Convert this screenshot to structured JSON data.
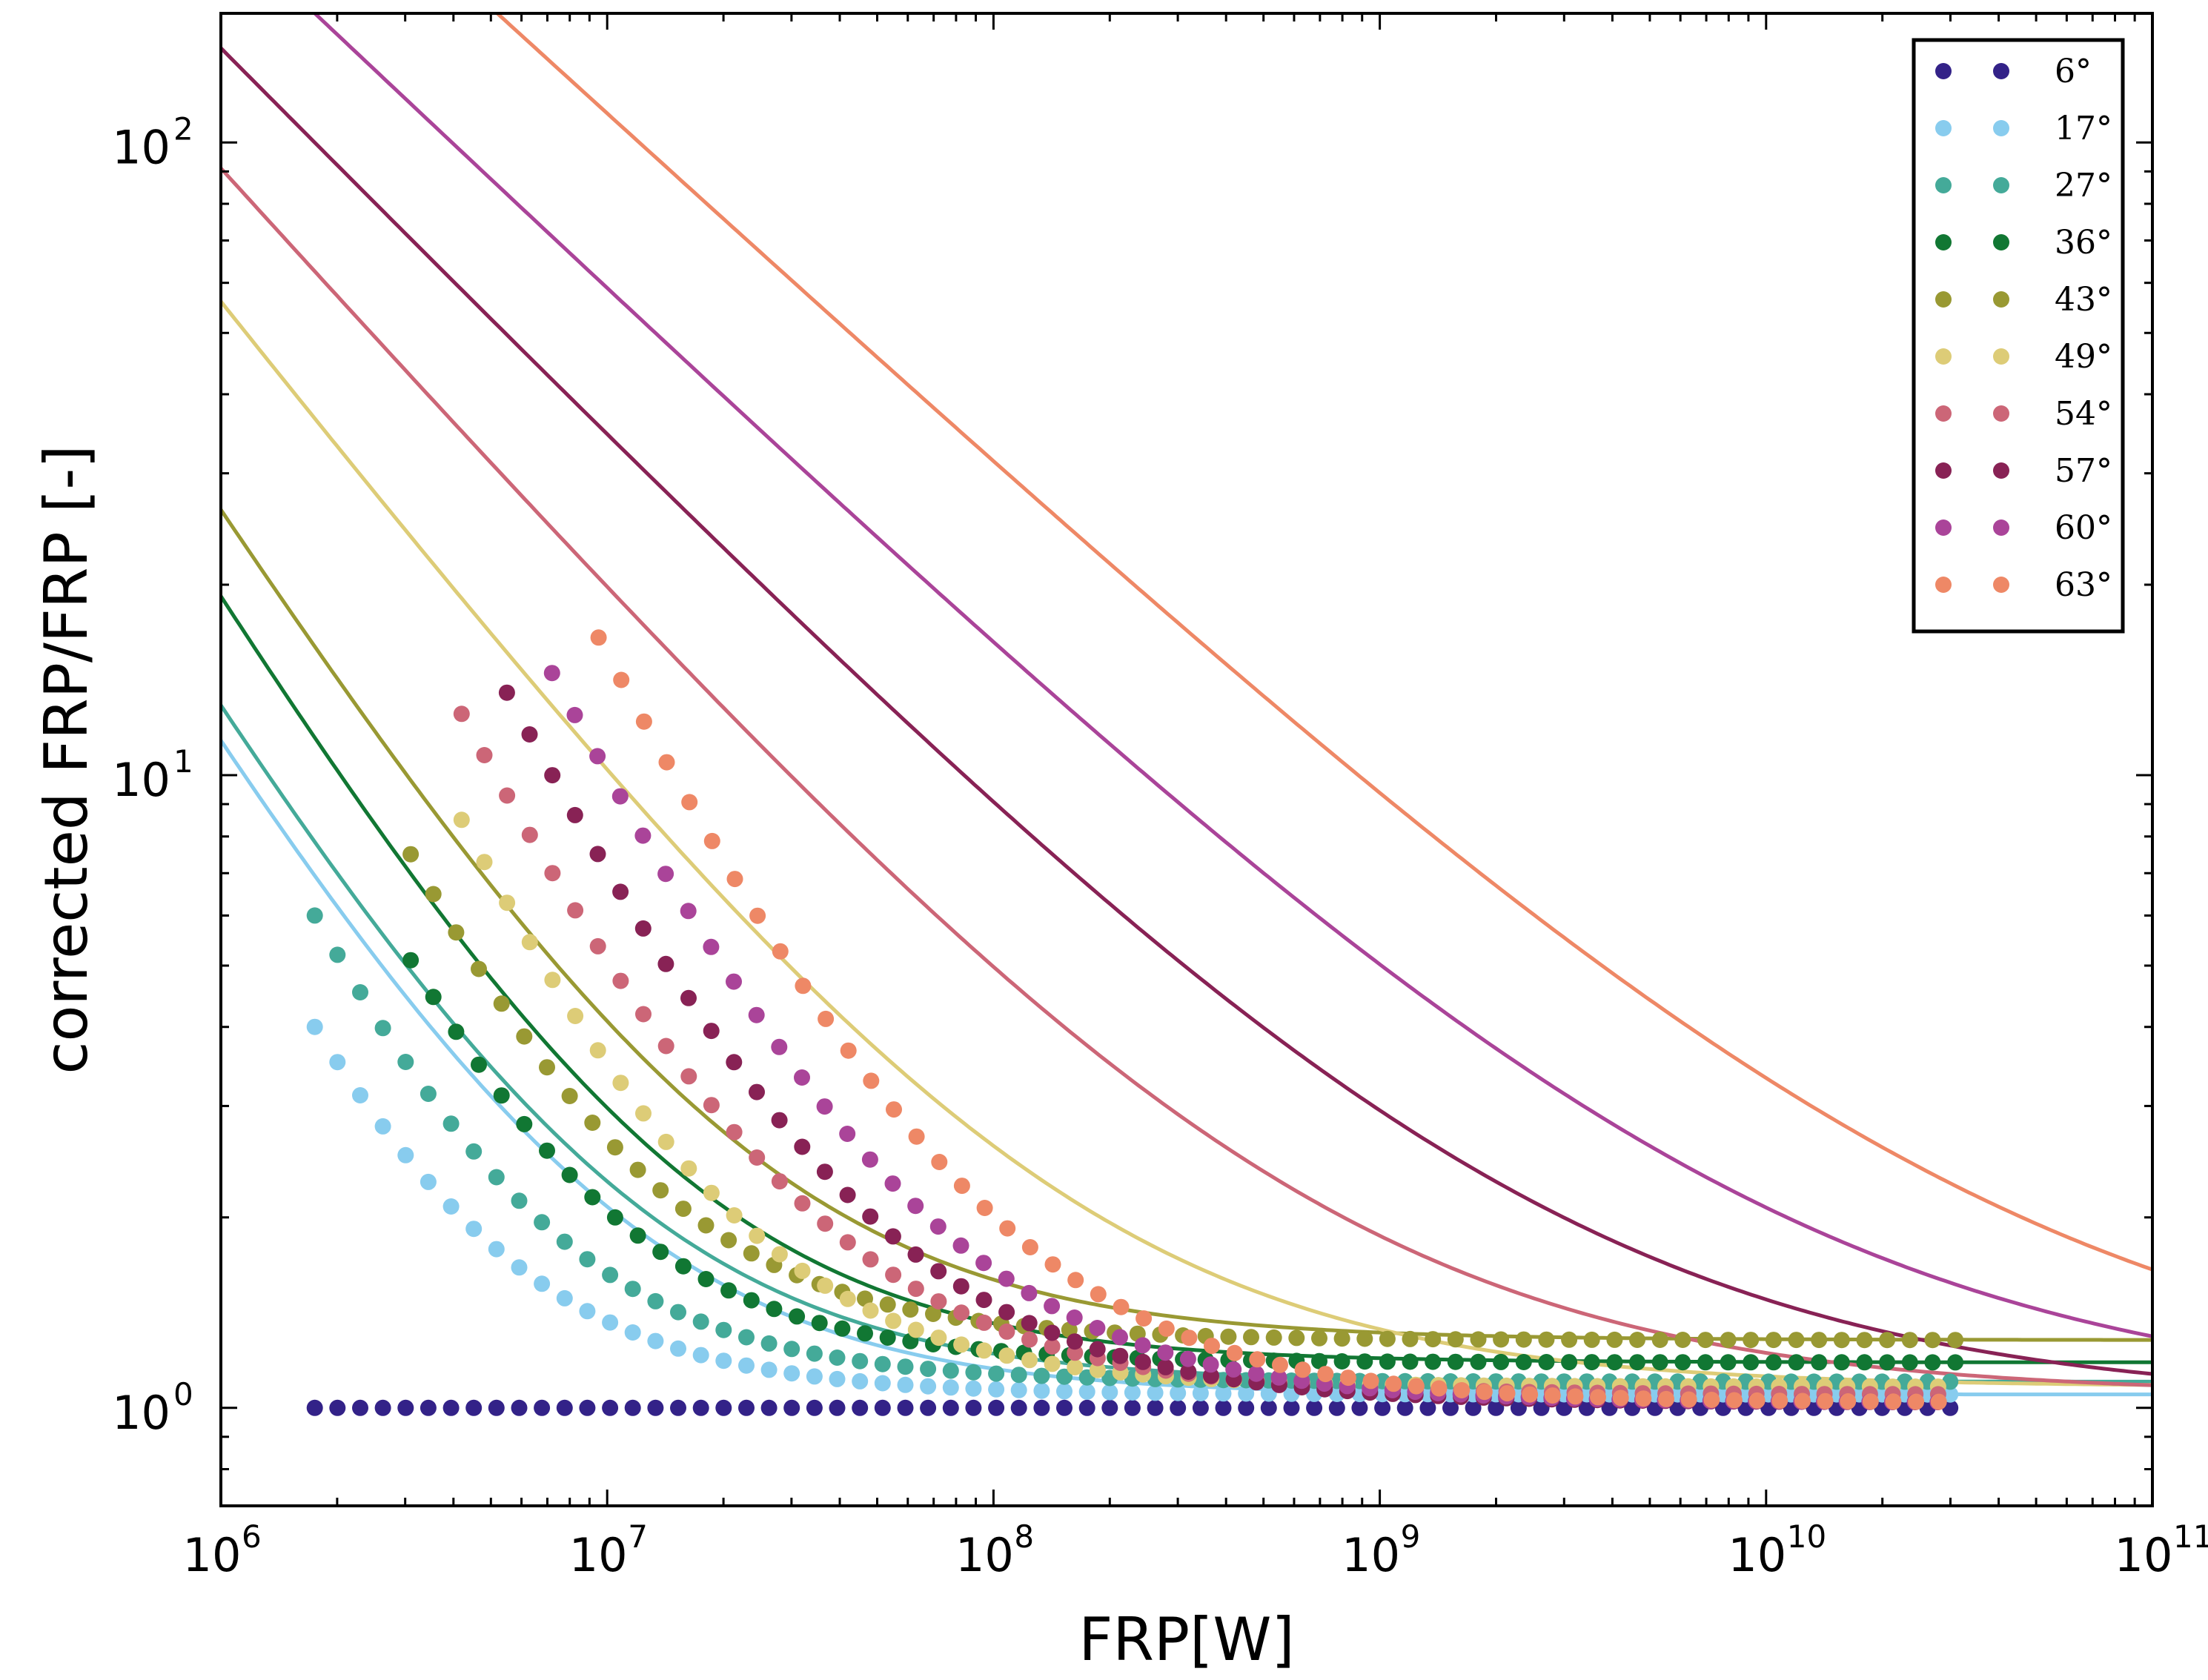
{
  "chart_data": {
    "type": "scatter",
    "title": "",
    "xlabel": "FRP[W]",
    "ylabel": "corrected FRP/FRP [-]",
    "xscale": "log",
    "yscale": "log",
    "xlim": [
      1000000,
      100000000000
    ],
    "ylim": [
      0.7,
      160
    ],
    "grid": false,
    "legend_position": "top-right",
    "x_ticks": [
      {
        "base": "10",
        "exp": "6"
      },
      {
        "base": "10",
        "exp": "7"
      },
      {
        "base": "10",
        "exp": "8"
      },
      {
        "base": "10",
        "exp": "9"
      },
      {
        "base": "10",
        "exp": "10"
      },
      {
        "base": "10",
        "exp": "11"
      }
    ],
    "y_ticks": [
      {
        "value": 1,
        "base": "10",
        "exp": "0"
      },
      {
        "value": 10,
        "base": "10",
        "exp": "1"
      },
      {
        "value": 100,
        "base": "10",
        "exp": "2"
      }
    ],
    "point_x_range": [
      1750000,
      31000000000
    ],
    "series": [
      {
        "name": "6°",
        "color": "#332288",
        "points_start_x": 1750000,
        "start_value": 1.0,
        "asymptote": 1.0,
        "fit_a": 0.0,
        "fit_b": 0.0
      },
      {
        "name": "17°",
        "color": "#88CCEE",
        "points_start_x": 1750000,
        "start_value": 4.0,
        "asymptote": 1.05,
        "fit_a": 10.3,
        "fit_b": 1.0
      },
      {
        "name": "27°",
        "color": "#44AA99",
        "points_start_x": 1750000,
        "start_value": 6.0,
        "asymptote": 1.1,
        "fit_a": 11.8,
        "fit_b": 1.0
      },
      {
        "name": "36°",
        "color": "#117733",
        "points_start_x": 3100000,
        "start_value": 5.1,
        "asymptote": 1.18,
        "fit_a": 18.0,
        "fit_b": 1.0
      },
      {
        "name": "43°",
        "color": "#999933",
        "points_start_x": 3100000,
        "start_value": 7.5,
        "asymptote": 1.28,
        "fit_a": 25.0,
        "fit_b": 0.95
      },
      {
        "name": "49°",
        "color": "#DDCC77",
        "points_start_x": 4200000,
        "start_value": 8.5,
        "asymptote": 1.08,
        "fit_a": 55.0,
        "fit_b": 0.78
      },
      {
        "name": "54°",
        "color": "#CC6677",
        "points_start_x": 4200000,
        "start_value": 12.5,
        "asymptote": 1.05,
        "fit_a": 90.0,
        "fit_b": 0.68
      },
      {
        "name": "57°",
        "color": "#882255",
        "points_start_x": 5500000,
        "start_value": 13.5,
        "asymptote": 1.02,
        "fit_a": 140.0,
        "fit_b": 0.62
      },
      {
        "name": "60°",
        "color": "#AA4499",
        "points_start_x": 7200000,
        "start_value": 14.5,
        "asymptote": 1.02,
        "fit_a": 220.0,
        "fit_b": 0.58
      },
      {
        "name": "63°",
        "color": "#EE8866",
        "points_start_x": 9500000,
        "start_value": 16.5,
        "asymptote": 1.02,
        "fit_a": 400.0,
        "fit_b": 0.56
      }
    ]
  }
}
